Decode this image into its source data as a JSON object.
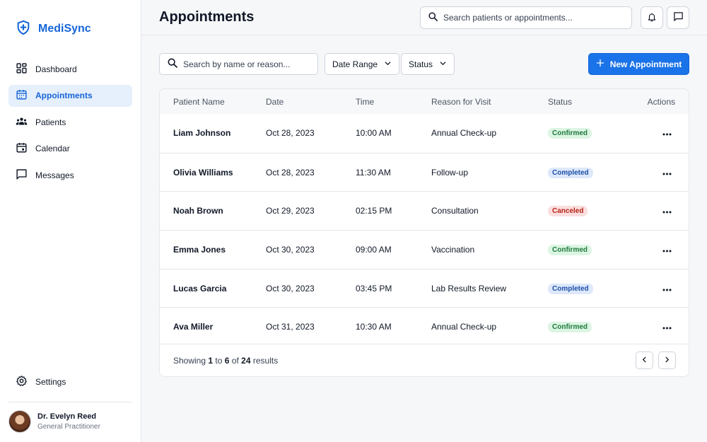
{
  "app": {
    "name": "MediSync"
  },
  "sidebar": {
    "items": [
      {
        "label": "Dashboard",
        "icon": "dashboard-icon"
      },
      {
        "label": "Appointments",
        "icon": "calendar-grid-icon"
      },
      {
        "label": "Patients",
        "icon": "patients-icon"
      },
      {
        "label": "Calendar",
        "icon": "calendar-icon"
      },
      {
        "label": "Messages",
        "icon": "message-icon"
      }
    ],
    "settings_label": "Settings",
    "user": {
      "name": "Dr. Evelyn Reed",
      "role": "General Practitioner"
    }
  },
  "header": {
    "title": "Appointments",
    "search_placeholder": "Search patients or appointments..."
  },
  "filters": {
    "search_placeholder": "Search by name or reason...",
    "date_range_label": "Date Range",
    "status_label": "Status",
    "new_button_label": "New Appointment"
  },
  "table": {
    "columns": [
      "Patient Name",
      "Date",
      "Time",
      "Reason for Visit",
      "Status",
      "Actions"
    ],
    "rows": [
      {
        "patient": "Liam Johnson",
        "date": "Oct 28, 2023",
        "time": "10:00 AM",
        "reason": "Annual Check-up",
        "status": "Confirmed"
      },
      {
        "patient": "Olivia Williams",
        "date": "Oct 28, 2023",
        "time": "11:30 AM",
        "reason": "Follow-up",
        "status": "Completed"
      },
      {
        "patient": "Noah Brown",
        "date": "Oct 29, 2023",
        "time": "02:15 PM",
        "reason": "Consultation",
        "status": "Canceled"
      },
      {
        "patient": "Emma Jones",
        "date": "Oct 30, 2023",
        "time": "09:00 AM",
        "reason": "Vaccination",
        "status": "Confirmed"
      },
      {
        "patient": "Lucas Garcia",
        "date": "Oct 30, 2023",
        "time": "03:45 PM",
        "reason": "Lab Results Review",
        "status": "Completed"
      },
      {
        "patient": "Ava Miller",
        "date": "Oct 31, 2023",
        "time": "10:30 AM",
        "reason": "Annual Check-up",
        "status": "Confirmed"
      }
    ],
    "footer": {
      "prefix": "Showing",
      "from": "1",
      "to_word": "to",
      "to": "6",
      "of_word": "of",
      "total": "24",
      "suffix": "results"
    }
  },
  "colors": {
    "accent": "#1a73e8",
    "confirmed_bg": "#dcf5e3",
    "confirmed_fg": "#1e7a3c",
    "completed_bg": "#dde8fb",
    "completed_fg": "#1d4fa8",
    "canceled_bg": "#fbdede",
    "canceled_fg": "#b42318"
  }
}
